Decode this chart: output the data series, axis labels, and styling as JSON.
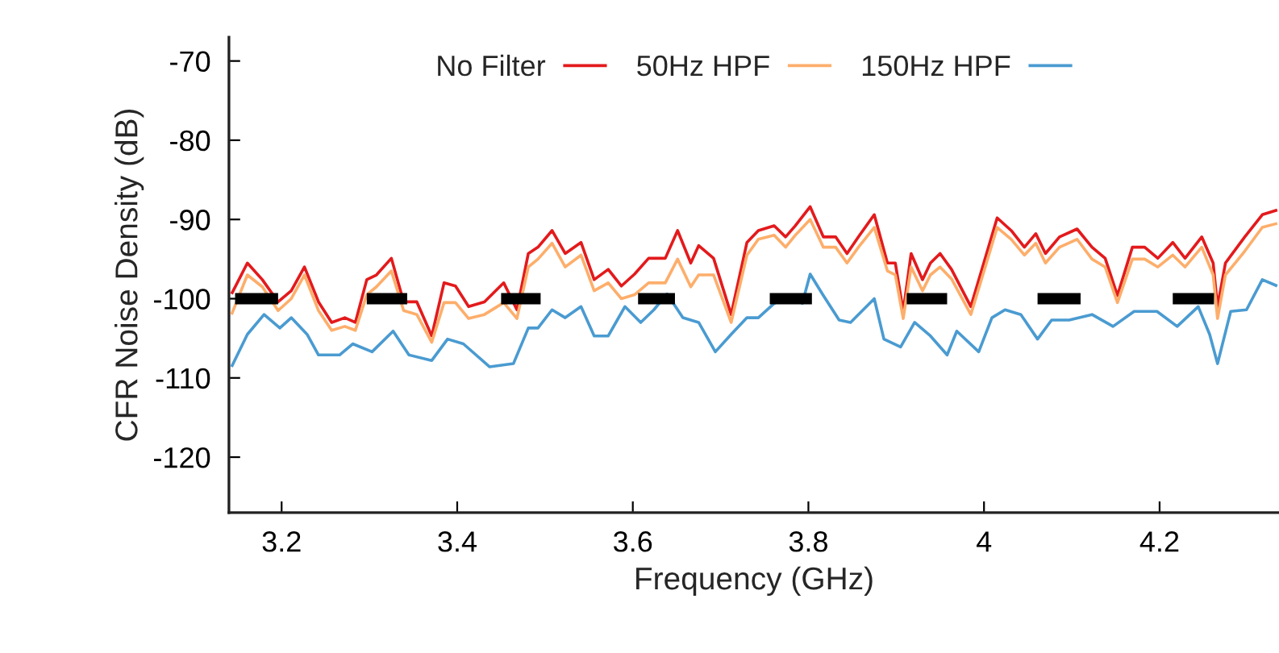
{
  "chart_data": {
    "type": "line",
    "xlabel": "Frequency (GHz)",
    "ylabel": "CFR Noise Density (dB)",
    "xlim": [
      3.14,
      4.336
    ],
    "xticks": [
      3.2,
      3.4,
      3.6,
      3.8,
      4,
      4.2
    ],
    "ylim": [
      -127,
      -67
    ],
    "yticks": [
      -70,
      -80,
      -90,
      -100,
      -110,
      -120
    ],
    "legend": "top",
    "grid": false,
    "line_style": "solid",
    "marker": "none",
    "series": [
      {
        "name": "No Filter",
        "color": "#e31a1c",
        "x": [
          3.143,
          3.161,
          3.178,
          3.196,
          3.211,
          3.226,
          3.242,
          3.257,
          3.272,
          3.284,
          3.297,
          3.308,
          3.325,
          3.339,
          3.354,
          3.371,
          3.385,
          3.398,
          3.413,
          3.431,
          3.453,
          3.468,
          3.481,
          3.492,
          3.508,
          3.523,
          3.541,
          3.556,
          3.572,
          3.587,
          3.602,
          3.618,
          3.637,
          3.651,
          3.666,
          3.675,
          3.692,
          3.712,
          3.73,
          3.743,
          3.761,
          3.774,
          3.785,
          3.802,
          3.817,
          3.831,
          3.844,
          3.857,
          3.875,
          3.89,
          3.899,
          3.908,
          3.917,
          3.93,
          3.939,
          3.95,
          3.963,
          3.985,
          3.996,
          4.015,
          4.031,
          4.046,
          4.059,
          4.07,
          4.086,
          4.106,
          4.123,
          4.138,
          4.152,
          4.169,
          4.183,
          4.198,
          4.215,
          4.229,
          4.248,
          4.261,
          4.266,
          4.275,
          4.297,
          4.317,
          4.334
        ],
        "values": [
          -99.4,
          -95.5,
          -97.6,
          -100.4,
          -99,
          -96,
          -100.4,
          -103,
          -102.4,
          -103,
          -97.6,
          -97,
          -94.9,
          -100.4,
          -100.4,
          -104.7,
          -98,
          -98.4,
          -101,
          -100.4,
          -98,
          -101.4,
          -94.3,
          -93.5,
          -91.4,
          -94.3,
          -92.9,
          -97.6,
          -96.3,
          -98.4,
          -96.9,
          -94.9,
          -94.9,
          -91.4,
          -95.5,
          -93.3,
          -94.9,
          -102,
          -92.9,
          -91.4,
          -90.8,
          -92.2,
          -90.8,
          -88.4,
          -92.2,
          -92.2,
          -94.3,
          -92.2,
          -89.4,
          -95.5,
          -95.5,
          -101.6,
          -94.3,
          -97.6,
          -95.5,
          -94.3,
          -96.3,
          -101,
          -96.9,
          -89.8,
          -91.4,
          -93.5,
          -91.8,
          -94.3,
          -92.2,
          -91.2,
          -93.5,
          -94.9,
          -99.6,
          -93.5,
          -93.5,
          -94.9,
          -92.9,
          -94.9,
          -92.2,
          -95.5,
          -101,
          -95.5,
          -92.2,
          -89.4,
          -88.8
        ]
      },
      {
        "name": "50Hz HPF",
        "color": "#fdae6b",
        "x": [
          3.143,
          3.161,
          3.178,
          3.196,
          3.211,
          3.226,
          3.242,
          3.257,
          3.272,
          3.284,
          3.297,
          3.308,
          3.325,
          3.339,
          3.354,
          3.371,
          3.385,
          3.398,
          3.413,
          3.431,
          3.453,
          3.468,
          3.481,
          3.492,
          3.508,
          3.523,
          3.541,
          3.556,
          3.572,
          3.587,
          3.602,
          3.618,
          3.637,
          3.651,
          3.666,
          3.675,
          3.692,
          3.712,
          3.73,
          3.743,
          3.761,
          3.774,
          3.785,
          3.802,
          3.817,
          3.831,
          3.844,
          3.857,
          3.875,
          3.89,
          3.899,
          3.908,
          3.917,
          3.93,
          3.939,
          3.95,
          3.963,
          3.985,
          3.996,
          4.015,
          4.031,
          4.046,
          4.059,
          4.07,
          4.086,
          4.106,
          4.123,
          4.138,
          4.152,
          4.169,
          4.183,
          4.198,
          4.215,
          4.229,
          4.248,
          4.261,
          4.266,
          4.275,
          4.297,
          4.317,
          4.334
        ],
        "values": [
          -102,
          -97,
          -98.5,
          -101.5,
          -100,
          -97,
          -101.5,
          -104,
          -103.5,
          -104,
          -99.5,
          -98.5,
          -96.5,
          -101.5,
          -102,
          -105.5,
          -100.5,
          -100.5,
          -102.5,
          -102,
          -100.5,
          -102.5,
          -96,
          -95,
          -93,
          -96,
          -94.5,
          -99,
          -98,
          -100,
          -99.5,
          -98,
          -98,
          -95,
          -98.5,
          -97,
          -97,
          -103,
          -94.5,
          -92.5,
          -92,
          -93.5,
          -92,
          -90,
          -93.5,
          -93.5,
          -95.5,
          -93.5,
          -91,
          -96.5,
          -97,
          -102.5,
          -96,
          -99,
          -97,
          -96,
          -97.5,
          -102,
          -98,
          -91,
          -92.5,
          -94.5,
          -93,
          -95.5,
          -93.5,
          -92.5,
          -95,
          -96,
          -100.5,
          -95,
          -95,
          -96,
          -94.5,
          -96,
          -93.5,
          -97,
          -102.5,
          -97,
          -94,
          -91,
          -90.5
        ]
      },
      {
        "name": "150Hz HPF",
        "color": "#4a9bd1",
        "x": [
          3.143,
          3.161,
          3.18,
          3.198,
          3.211,
          3.229,
          3.242,
          3.266,
          3.281,
          3.303,
          3.327,
          3.345,
          3.371,
          3.389,
          3.407,
          3.437,
          3.464,
          3.481,
          3.492,
          3.508,
          3.523,
          3.541,
          3.556,
          3.572,
          3.591,
          3.609,
          3.624,
          3.639,
          3.657,
          3.675,
          3.694,
          3.712,
          3.73,
          3.743,
          3.761,
          3.78,
          3.793,
          3.802,
          3.817,
          3.835,
          3.848,
          3.875,
          3.886,
          3.905,
          3.921,
          3.939,
          3.958,
          3.969,
          3.994,
          4.009,
          4.024,
          4.042,
          4.061,
          4.077,
          4.097,
          4.123,
          4.147,
          4.171,
          4.197,
          4.22,
          4.244,
          4.257,
          4.266,
          4.281,
          4.299,
          4.317,
          4.334
        ],
        "values": [
          -108.6,
          -104.5,
          -102,
          -103.7,
          -102.4,
          -104.5,
          -107.1,
          -107.1,
          -105.7,
          -106.7,
          -104.1,
          -107.1,
          -107.8,
          -105.1,
          -105.7,
          -108.6,
          -108.2,
          -103.7,
          -103.7,
          -101.4,
          -102.4,
          -101,
          -104.7,
          -104.7,
          -101,
          -103,
          -101.4,
          -99.4,
          -102.4,
          -103,
          -106.7,
          -104.5,
          -102.4,
          -102.4,
          -100.6,
          -99.6,
          -100.6,
          -96.9,
          -99.6,
          -102.7,
          -103,
          -100,
          -105.1,
          -106.1,
          -103,
          -104.7,
          -107.1,
          -104.1,
          -106.7,
          -102.4,
          -101.4,
          -102,
          -105.1,
          -102.7,
          -102.7,
          -102,
          -103.5,
          -101.6,
          -101.6,
          -103.5,
          -101,
          -104.5,
          -108.2,
          -101.6,
          -101.4,
          -97.6,
          -98.4
        ]
      },
      {
        "color": "#000000",
        "x": [
          3.147,
          3.196,
          3.25,
          3.297,
          3.343,
          3.4,
          3.45,
          3.495,
          3.55,
          3.606,
          3.648,
          3.7,
          3.756,
          3.804,
          3.86,
          3.912,
          3.958,
          4.01,
          4.061,
          4.11,
          4.16,
          4.215,
          4.262
        ],
        "values": [
          -100,
          -100,
          null,
          -100,
          -100,
          null,
          -100,
          -100,
          null,
          -100,
          -100,
          null,
          -100,
          -100,
          null,
          -100,
          -100,
          null,
          -100,
          -100,
          null,
          -100,
          -100
        ]
      }
    ]
  }
}
